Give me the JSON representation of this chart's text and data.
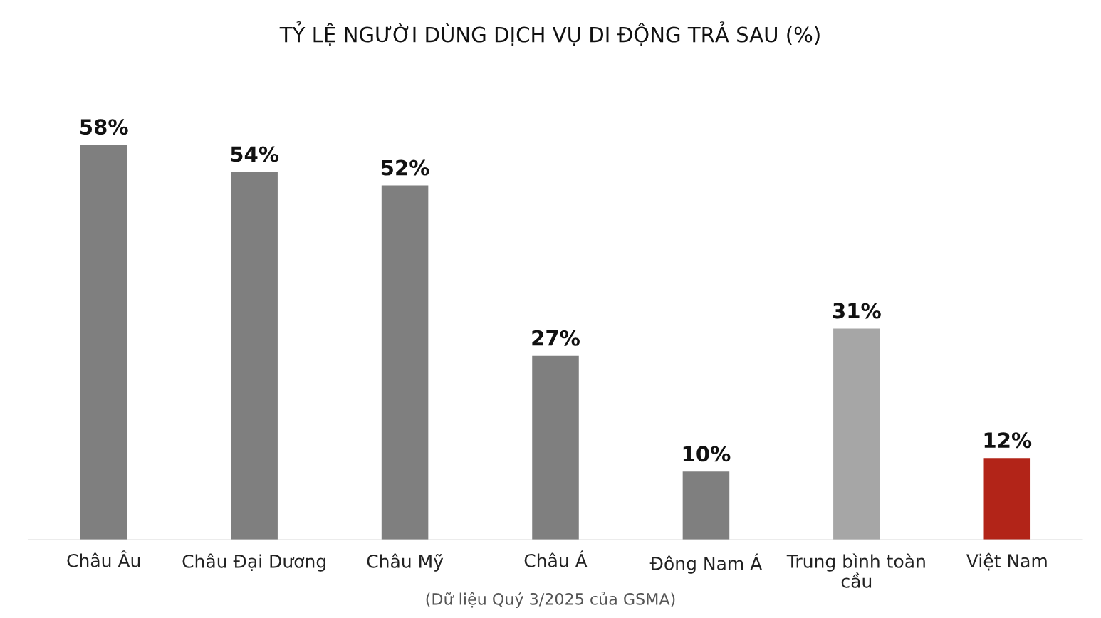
{
  "chart_data": {
    "type": "bar",
    "title": "TỶ LỆ NGƯỜI DÙNG DỊCH VỤ DI ĐỘNG TRẢ SAU (%)",
    "categories": [
      "Châu Âu",
      "Châu Đại Dương",
      "Châu Mỹ",
      "Châu Á",
      "Đông Nam Á",
      "Trung bình toàn cầu",
      "Việt Nam"
    ],
    "values": [
      58,
      54,
      52,
      27,
      10,
      31,
      12
    ],
    "colors": [
      "#7f7f7f",
      "#7f7f7f",
      "#7f7f7f",
      "#7f7f7f",
      "#7f7f7f",
      "#a6a6a6",
      "#b22418"
    ],
    "value_labels": [
      "58%",
      "54%",
      "52%",
      "27%",
      "10%",
      "31%",
      "12%"
    ],
    "annotations": [
      "(Dữ liệu Quý 3/2025 của GSMA)"
    ],
    "grid": false,
    "legend": false,
    "tick_labels": "x"
  }
}
